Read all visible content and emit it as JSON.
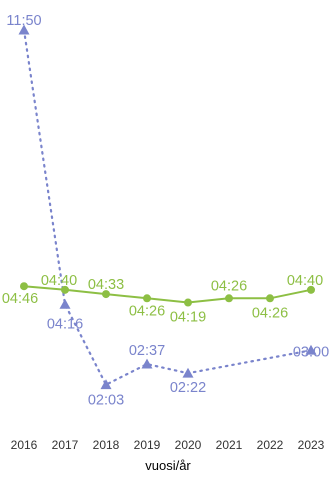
{
  "chart_data": {
    "type": "line",
    "xlabel": "vuosi/år",
    "ylabel": "",
    "categories": [
      "2016",
      "2017",
      "2018",
      "2019",
      "2020",
      "2021",
      "2022",
      "2023"
    ],
    "y_unit": "minutes",
    "ylim": [
      0,
      720
    ],
    "grid": false,
    "series": [
      {
        "color": "#7a84cc",
        "marker": "triangle",
        "line_style": "dotted",
        "values": [
          710,
          256,
          123,
          157,
          142,
          null,
          null,
          180
        ],
        "labels": [
          "11:50",
          "04:16",
          "02:03",
          "02:37",
          "02:22",
          null,
          null,
          "03:00"
        ]
      },
      {
        "color": "#8dbf44",
        "marker": "circle",
        "line_style": "solid",
        "values": [
          286,
          280,
          273,
          266,
          259,
          266,
          266,
          280
        ],
        "labels": [
          "04:46",
          "04:40",
          "04:33",
          "04:26",
          "04:19",
          "04:26",
          "04:26",
          "04:40"
        ]
      }
    ]
  }
}
